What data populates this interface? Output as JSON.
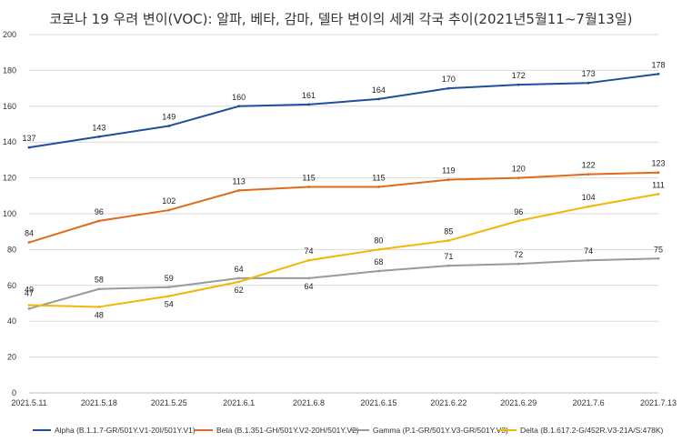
{
  "chart_data": {
    "type": "line",
    "title": "코로나 19 우려 변이(VOC): 알파, 베타, 감마, 델타 변이의 세계 각국 추이(2021년5월11~7월13일)",
    "xlabel": "",
    "ylabel": "",
    "ylim": [
      0,
      200
    ],
    "yticks": [
      0,
      20,
      40,
      60,
      80,
      100,
      120,
      140,
      160,
      180,
      200
    ],
    "grid": true,
    "legend_position": "bottom",
    "categories": [
      "2021.5.11",
      "2021.5.18",
      "2021.5.25",
      "2021.6.1",
      "2021.6.8",
      "2021.6.15",
      "2021.6.22",
      "2021.6.29",
      "2021.7.6",
      "2021.7.13"
    ],
    "series": [
      {
        "name": "Alpha (B.1.1.7-GR/501Y.V1-20I/501Y.V1)",
        "color": "#1f4e9c",
        "values": [
          137,
          143,
          149,
          160,
          161,
          164,
          170,
          172,
          173,
          178
        ]
      },
      {
        "name": "Beta (B.1.351-GH/501Y.V2-20H/501Y.V2)",
        "color": "#e06b1a",
        "values": [
          84,
          96,
          102,
          113,
          115,
          115,
          119,
          120,
          122,
          123
        ]
      },
      {
        "name": "Gamma (P.1-GR/501Y.V3-GR/501Y.V3)",
        "color": "#9a9a9a",
        "values": [
          47,
          58,
          59,
          64,
          64,
          68,
          71,
          72,
          74,
          75
        ]
      },
      {
        "name": "Delta (B.1.617.2-G/452R.V3-21A/S:478K)",
        "color": "#f2b705",
        "values": [
          49,
          48,
          54,
          62,
          74,
          80,
          85,
          96,
          104,
          111
        ]
      }
    ]
  }
}
